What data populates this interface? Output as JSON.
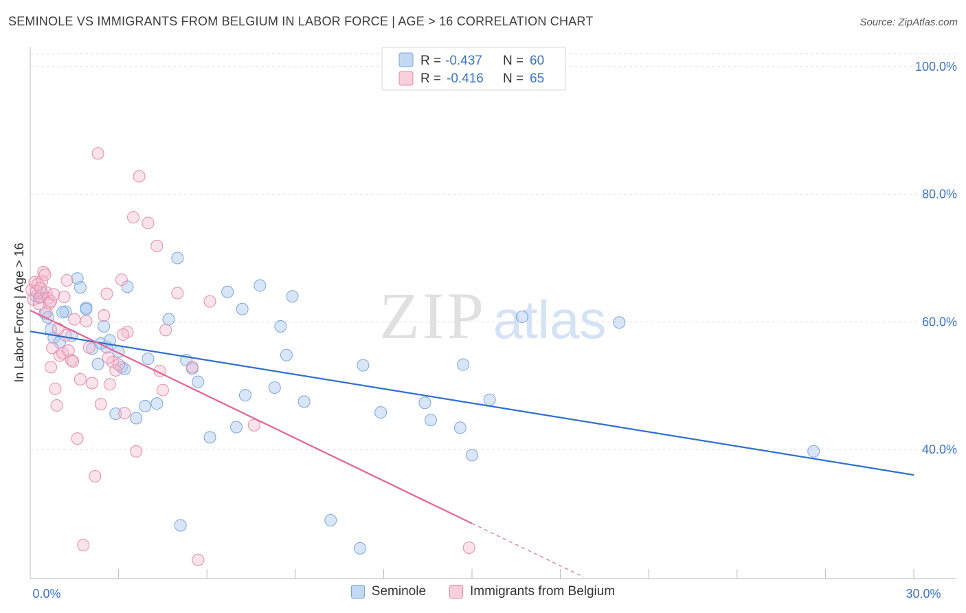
{
  "header": {
    "title": "SEMINOLE VS IMMIGRANTS FROM BELGIUM IN LABOR FORCE | AGE > 16 CORRELATION CHART",
    "source": "Source: ZipAtlas.com"
  },
  "watermark": {
    "zip": "ZIP",
    "atlas": "atlas"
  },
  "colors": {
    "blue": "#a9c8ef",
    "blue_line": "#2f6fcf",
    "pink": "#f6b9cc",
    "pink_line": "#e46495",
    "tick_label": "#3a74c9",
    "grid": "#dddddd"
  },
  "legend": {
    "rows": [
      {
        "r_label": "R = ",
        "r_value": "-0.437",
        "n_label": "N = ",
        "n_value": "60"
      },
      {
        "r_label": "R = ",
        "r_value": "-0.416",
        "n_label": "N = ",
        "n_value": "65"
      }
    ]
  },
  "chart_data": {
    "type": "scatter",
    "title": "SEMINOLE VS IMMIGRANTS FROM BELGIUM IN LABOR FORCE | AGE > 16 CORRELATION CHART",
    "xlabel": "",
    "ylabel": "In Labor Force | Age > 16",
    "xlim": [
      0,
      30
    ],
    "ylim": [
      20,
      105
    ],
    "x_tick_labels": [
      {
        "value": 0,
        "label": "0.0%"
      },
      {
        "value": 30,
        "label": "30.0%"
      }
    ],
    "y_tick_labels": [
      {
        "value": 100,
        "label": "100.0%"
      },
      {
        "value": 80,
        "label": "80.0%"
      },
      {
        "value": 60,
        "label": "60.0%"
      },
      {
        "value": 40,
        "label": "40.0%"
      }
    ],
    "series": [
      {
        "name": "Seminole",
        "color": "#a9c8ef",
        "trend": {
          "x_start": 0,
          "y_start": 58.5,
          "x_end": 30,
          "y_end": 36.0,
          "dashed_to": null
        },
        "points": [
          [
            0.2,
            64.0
          ],
          [
            0.4,
            64.5
          ],
          [
            0.5,
            61.3
          ],
          [
            0.6,
            60.7
          ],
          [
            0.7,
            58.8
          ],
          [
            0.8,
            57.5
          ],
          [
            1.0,
            56.8
          ],
          [
            1.2,
            61.6
          ],
          [
            1.4,
            57.8
          ],
          [
            1.6,
            66.8
          ],
          [
            1.7,
            65.4
          ],
          [
            1.9,
            62.2
          ],
          [
            1.9,
            62.0
          ],
          [
            2.1,
            55.8
          ],
          [
            2.3,
            53.4
          ],
          [
            2.4,
            56.6
          ],
          [
            2.5,
            59.3
          ],
          [
            2.6,
            56.0
          ],
          [
            2.7,
            57.1
          ],
          [
            2.9,
            45.6
          ],
          [
            3.0,
            55.3
          ],
          [
            3.1,
            52.9
          ],
          [
            3.2,
            52.6
          ],
          [
            3.3,
            65.5
          ],
          [
            3.6,
            44.9
          ],
          [
            3.9,
            46.8
          ],
          [
            4.0,
            54.2
          ],
          [
            4.3,
            47.2
          ],
          [
            4.7,
            60.4
          ],
          [
            5.0,
            70.0
          ],
          [
            5.1,
            28.1
          ],
          [
            5.3,
            54.0
          ],
          [
            5.5,
            52.7
          ],
          [
            5.7,
            50.6
          ],
          [
            6.1,
            41.9
          ],
          [
            6.7,
            64.7
          ],
          [
            7.0,
            43.5
          ],
          [
            7.2,
            62.0
          ],
          [
            7.3,
            48.5
          ],
          [
            7.8,
            65.7
          ],
          [
            8.3,
            49.7
          ],
          [
            8.5,
            59.3
          ],
          [
            8.7,
            54.8
          ],
          [
            8.9,
            64.0
          ],
          [
            9.3,
            47.5
          ],
          [
            10.2,
            28.9
          ],
          [
            11.2,
            24.5
          ],
          [
            11.3,
            53.2
          ],
          [
            11.9,
            45.8
          ],
          [
            13.4,
            47.3
          ],
          [
            13.6,
            44.6
          ],
          [
            14.6,
            43.4
          ],
          [
            14.7,
            53.3
          ],
          [
            15.0,
            39.1
          ],
          [
            15.6,
            47.8
          ],
          [
            16.7,
            60.8
          ],
          [
            20.0,
            59.9
          ],
          [
            26.6,
            39.7
          ],
          [
            0.3,
            63.8
          ],
          [
            1.1,
            61.5
          ]
        ]
      },
      {
        "name": "Immigrants from Belgium",
        "color": "#f6b9cc",
        "trend": {
          "x_start": 0,
          "y_start": 61.8,
          "x_end": 15.0,
          "y_end": 28.4,
          "dashed_to": {
            "x": 18.8,
            "y": 20.0
          }
        },
        "points": [
          [
            0.05,
            65.0
          ],
          [
            0.1,
            63.5
          ],
          [
            0.15,
            66.2
          ],
          [
            0.2,
            64.8
          ],
          [
            0.25,
            65.9
          ],
          [
            0.3,
            62.8
          ],
          [
            0.35,
            63.9
          ],
          [
            0.4,
            66.4
          ],
          [
            0.45,
            67.8
          ],
          [
            0.5,
            67.4
          ],
          [
            0.55,
            64.6
          ],
          [
            0.6,
            63.7
          ],
          [
            0.65,
            62.9
          ],
          [
            0.7,
            63.2
          ],
          [
            0.75,
            55.9
          ],
          [
            0.8,
            64.3
          ],
          [
            0.85,
            49.5
          ],
          [
            0.9,
            46.9
          ],
          [
            1.0,
            54.7
          ],
          [
            1.1,
            55.1
          ],
          [
            1.2,
            57.9
          ],
          [
            1.25,
            66.5
          ],
          [
            1.3,
            55.5
          ],
          [
            1.4,
            54.0
          ],
          [
            1.45,
            53.8
          ],
          [
            1.5,
            60.4
          ],
          [
            1.6,
            41.7
          ],
          [
            1.7,
            51.0
          ],
          [
            1.8,
            25.0
          ],
          [
            1.9,
            60.1
          ],
          [
            2.0,
            56.0
          ],
          [
            2.1,
            50.4
          ],
          [
            2.2,
            35.8
          ],
          [
            2.3,
            86.4
          ],
          [
            2.4,
            47.1
          ],
          [
            2.5,
            61.0
          ],
          [
            2.6,
            64.4
          ],
          [
            2.7,
            50.2
          ],
          [
            2.8,
            53.7
          ],
          [
            2.9,
            52.4
          ],
          [
            3.0,
            53.3
          ],
          [
            3.1,
            66.6
          ],
          [
            3.2,
            45.7
          ],
          [
            3.3,
            58.4
          ],
          [
            3.5,
            76.4
          ],
          [
            3.6,
            39.7
          ],
          [
            3.7,
            82.8
          ],
          [
            4.0,
            75.5
          ],
          [
            4.3,
            71.9
          ],
          [
            4.4,
            52.3
          ],
          [
            4.5,
            49.3
          ],
          [
            4.6,
            58.7
          ],
          [
            5.0,
            64.5
          ],
          [
            5.5,
            52.9
          ],
          [
            5.7,
            22.7
          ],
          [
            6.1,
            63.2
          ],
          [
            7.6,
            43.8
          ],
          [
            14.9,
            24.6
          ],
          [
            0.35,
            65.3
          ],
          [
            0.55,
            61.5
          ],
          [
            0.7,
            52.9
          ],
          [
            0.95,
            58.9
          ],
          [
            1.15,
            63.9
          ],
          [
            2.65,
            54.4
          ],
          [
            3.15,
            58.0
          ]
        ]
      }
    ]
  },
  "bottom_legend": [
    {
      "label": "Seminole",
      "color": "#a9c8ef",
      "border": "#7aa6dd"
    },
    {
      "label": "Immigrants from Belgium",
      "color": "#f6b9cc",
      "border": "#e58aa9"
    }
  ]
}
